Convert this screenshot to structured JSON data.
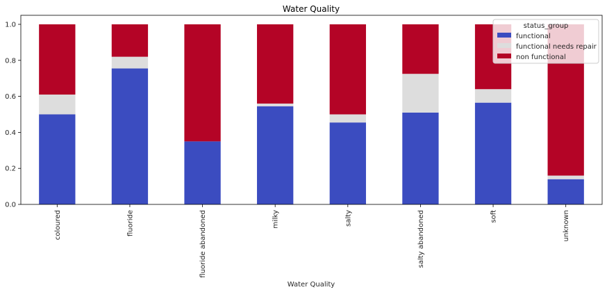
{
  "chart_data": {
    "type": "bar",
    "stacked": true,
    "title": "Water Quality",
    "xlabel": "Water Quality",
    "ylabel": "",
    "ylim": [
      0,
      1.0
    ],
    "yticks": [
      "0.0",
      "0.2",
      "0.4",
      "0.6",
      "0.8",
      "1.0"
    ],
    "categories": [
      "coloured",
      "fluoride",
      "fluoride abandoned",
      "milky",
      "salty",
      "salty abandoned",
      "soft",
      "unknown"
    ],
    "series": [
      {
        "name": "functional",
        "color": "#3b4cc0",
        "values": [
          0.5,
          0.755,
          0.35,
          0.545,
          0.455,
          0.51,
          0.565,
          0.14
        ]
      },
      {
        "name": "functional needs repair",
        "color": "#dddddd",
        "values": [
          0.11,
          0.065,
          0.0,
          0.015,
          0.045,
          0.215,
          0.075,
          0.02
        ]
      },
      {
        "name": "non functional",
        "color": "#b40426",
        "values": [
          0.39,
          0.18,
          0.65,
          0.44,
          0.5,
          0.275,
          0.36,
          0.84
        ]
      }
    ],
    "legend": {
      "title": "status_group",
      "placement": "top-right"
    },
    "grid": false
  }
}
